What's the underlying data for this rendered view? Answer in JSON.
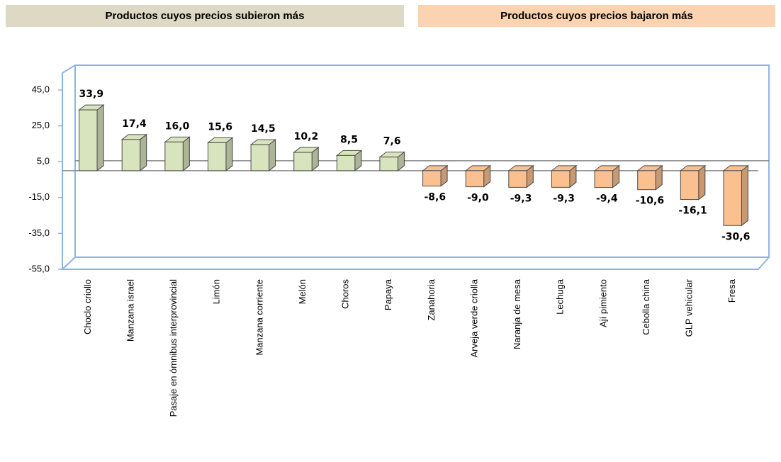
{
  "chart_data": {
    "type": "bar3d",
    "group_labels": [
      "Productos cuyos precios subieron más",
      "Productos cuyos precios bajaron más"
    ],
    "group_colors": [
      "#ddd9c4",
      "#fbd3b1"
    ],
    "categories": [
      "Choclo criollo",
      "Manzana israel",
      "Pasaje en ómnibus interprovincial",
      "Limón",
      "Manzana corriente",
      "Melón",
      "Choros",
      "Papaya",
      "Zanahoria",
      "Arveja verde criolla",
      "Naranja de mesa",
      "Lechuga",
      "Ají pimiento",
      "Cebolla china",
      "GLP vehicular",
      "Fresa"
    ],
    "values": [
      33.9,
      17.4,
      16.0,
      15.6,
      14.5,
      10.2,
      8.5,
      7.6,
      -8.6,
      -9.0,
      -9.3,
      -9.3,
      -9.4,
      -10.6,
      -16.1,
      -30.6
    ],
    "value_labels": [
      "33,9",
      "17,4",
      "16,0",
      "15,6",
      "14,5",
      "10,2",
      "8,5",
      "7,6",
      "-8,6",
      "-9,0",
      "-9,3",
      "-9,3",
      "-9,4",
      "-10,6",
      "-16,1",
      "-30,6"
    ],
    "positive_color": "#d7e4bd",
    "negative_color": "#fac090",
    "ylim": [
      -55,
      45
    ],
    "yticks": [
      {
        "value": 45,
        "label": "45,0"
      },
      {
        "value": 25,
        "label": "25,0"
      },
      {
        "value": 5,
        "label": "5,0"
      },
      {
        "value": -15,
        "label": "-15,0"
      },
      {
        "value": -35,
        "label": "-35,0"
      },
      {
        "value": -55,
        "label": "-55,0"
      }
    ]
  }
}
